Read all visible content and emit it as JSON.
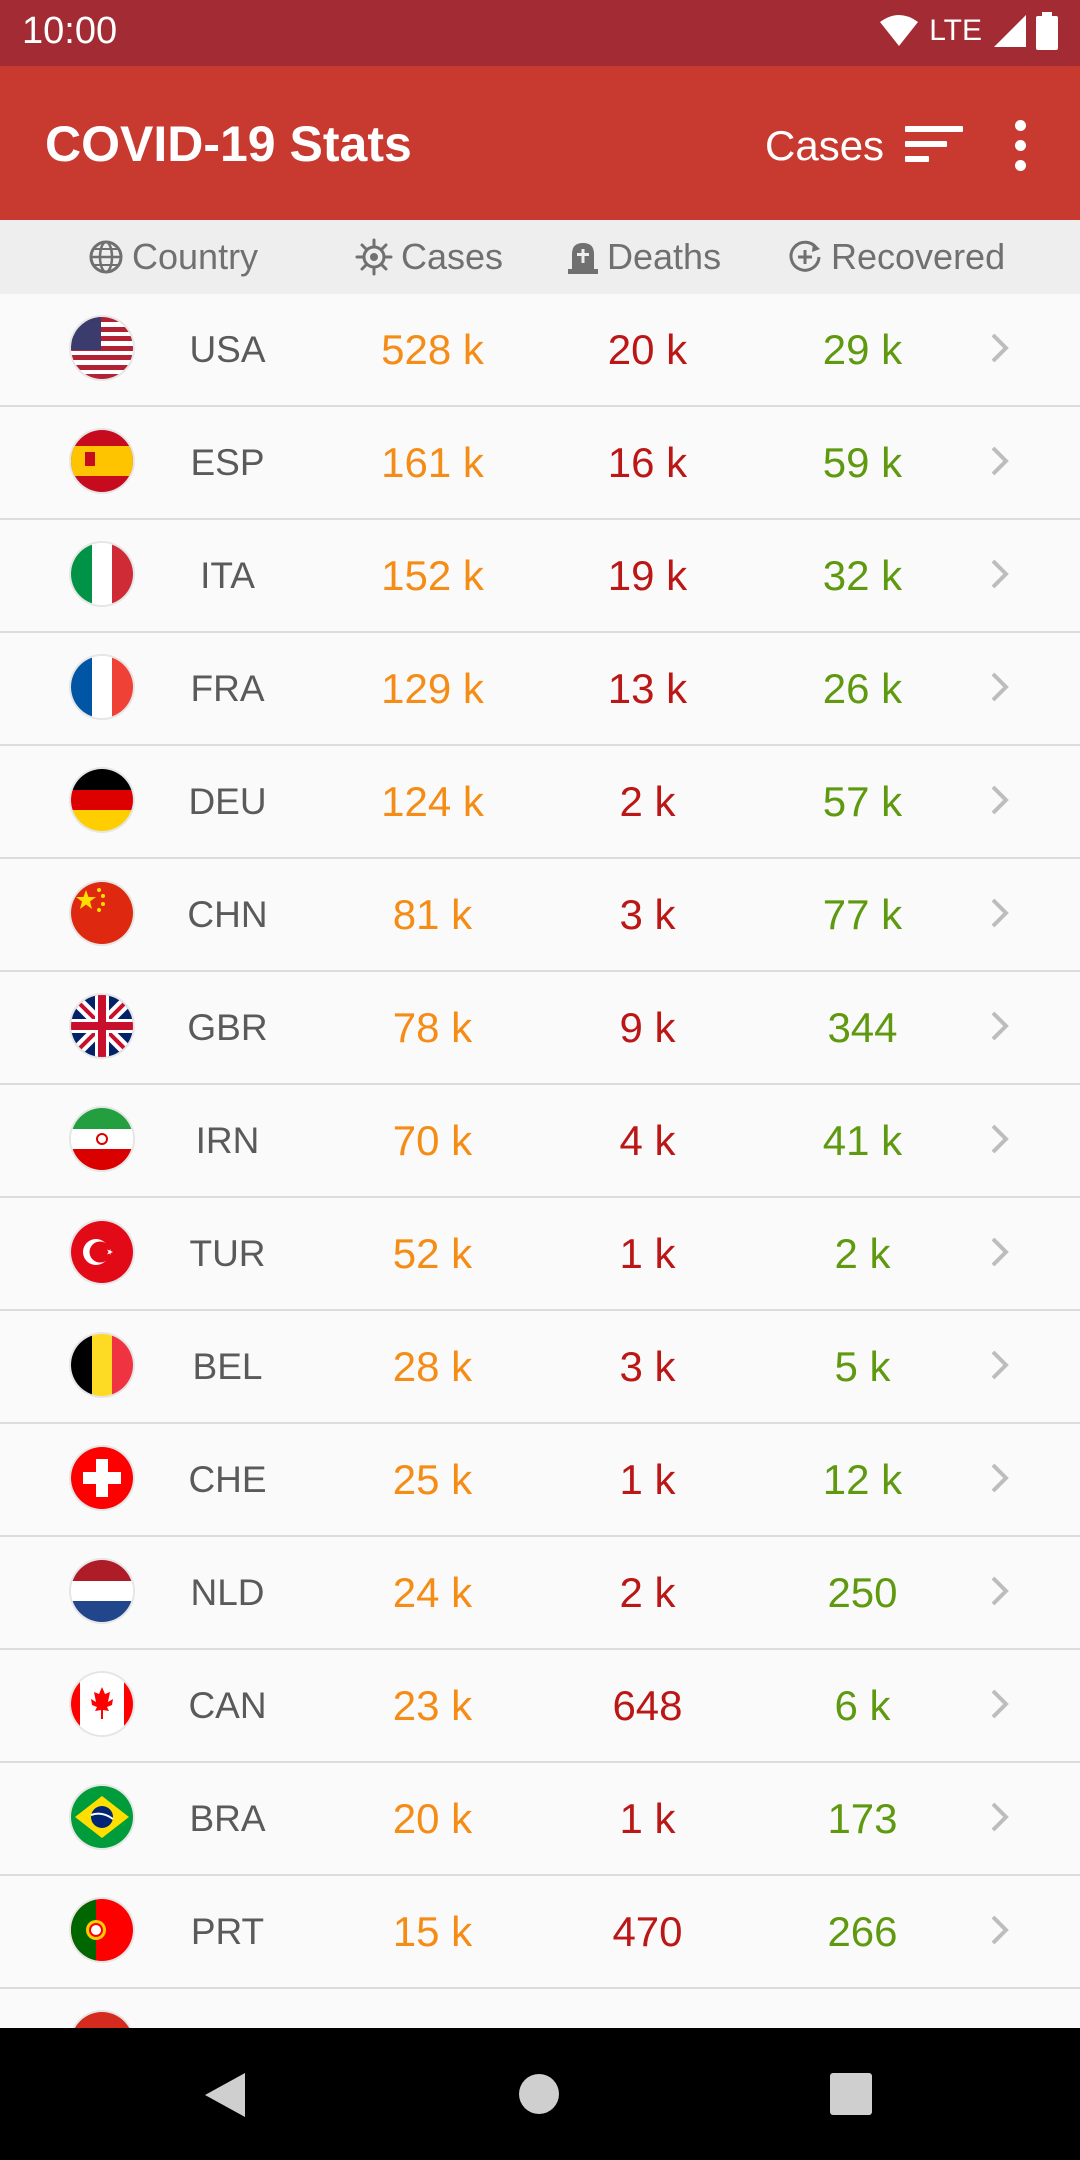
{
  "status_bar": {
    "time": "10:00",
    "network": "LTE"
  },
  "app_bar": {
    "title": "COVID-19 Stats",
    "sort_label": "Cases"
  },
  "table_header": {
    "country": "Country",
    "cases": "Cases",
    "deaths": "Deaths",
    "recovered": "Recovered"
  },
  "rows": [
    {
      "code": "USA",
      "cases": "528 k",
      "deaths": "20 k",
      "recovered": "29 k"
    },
    {
      "code": "ESP",
      "cases": "161 k",
      "deaths": "16 k",
      "recovered": "59 k"
    },
    {
      "code": "ITA",
      "cases": "152 k",
      "deaths": "19 k",
      "recovered": "32 k"
    },
    {
      "code": "FRA",
      "cases": "129 k",
      "deaths": "13 k",
      "recovered": "26 k"
    },
    {
      "code": "DEU",
      "cases": "124 k",
      "deaths": "2 k",
      "recovered": "57 k"
    },
    {
      "code": "CHN",
      "cases": "81 k",
      "deaths": "3 k",
      "recovered": "77 k"
    },
    {
      "code": "GBR",
      "cases": "78 k",
      "deaths": "9 k",
      "recovered": "344"
    },
    {
      "code": "IRN",
      "cases": "70 k",
      "deaths": "4 k",
      "recovered": "41 k"
    },
    {
      "code": "TUR",
      "cases": "52 k",
      "deaths": "1 k",
      "recovered": "2 k"
    },
    {
      "code": "BEL",
      "cases": "28 k",
      "deaths": "3 k",
      "recovered": "5 k"
    },
    {
      "code": "CHE",
      "cases": "25 k",
      "deaths": "1 k",
      "recovered": "12 k"
    },
    {
      "code": "NLD",
      "cases": "24 k",
      "deaths": "2 k",
      "recovered": "250"
    },
    {
      "code": "CAN",
      "cases": "23 k",
      "deaths": "648",
      "recovered": "6 k"
    },
    {
      "code": "BRA",
      "cases": "20 k",
      "deaths": "1 k",
      "recovered": "173"
    },
    {
      "code": "PRT",
      "cases": "15 k",
      "deaths": "470",
      "recovered": "266"
    },
    {
      "code": "",
      "cases": "",
      "deaths": "",
      "recovered": ""
    }
  ],
  "colors": {
    "status_bar": "#a32b33",
    "app_bar": "#c83a30",
    "cases": "#f58c16",
    "deaths": "#bb1717",
    "recovered": "#5f9910"
  }
}
